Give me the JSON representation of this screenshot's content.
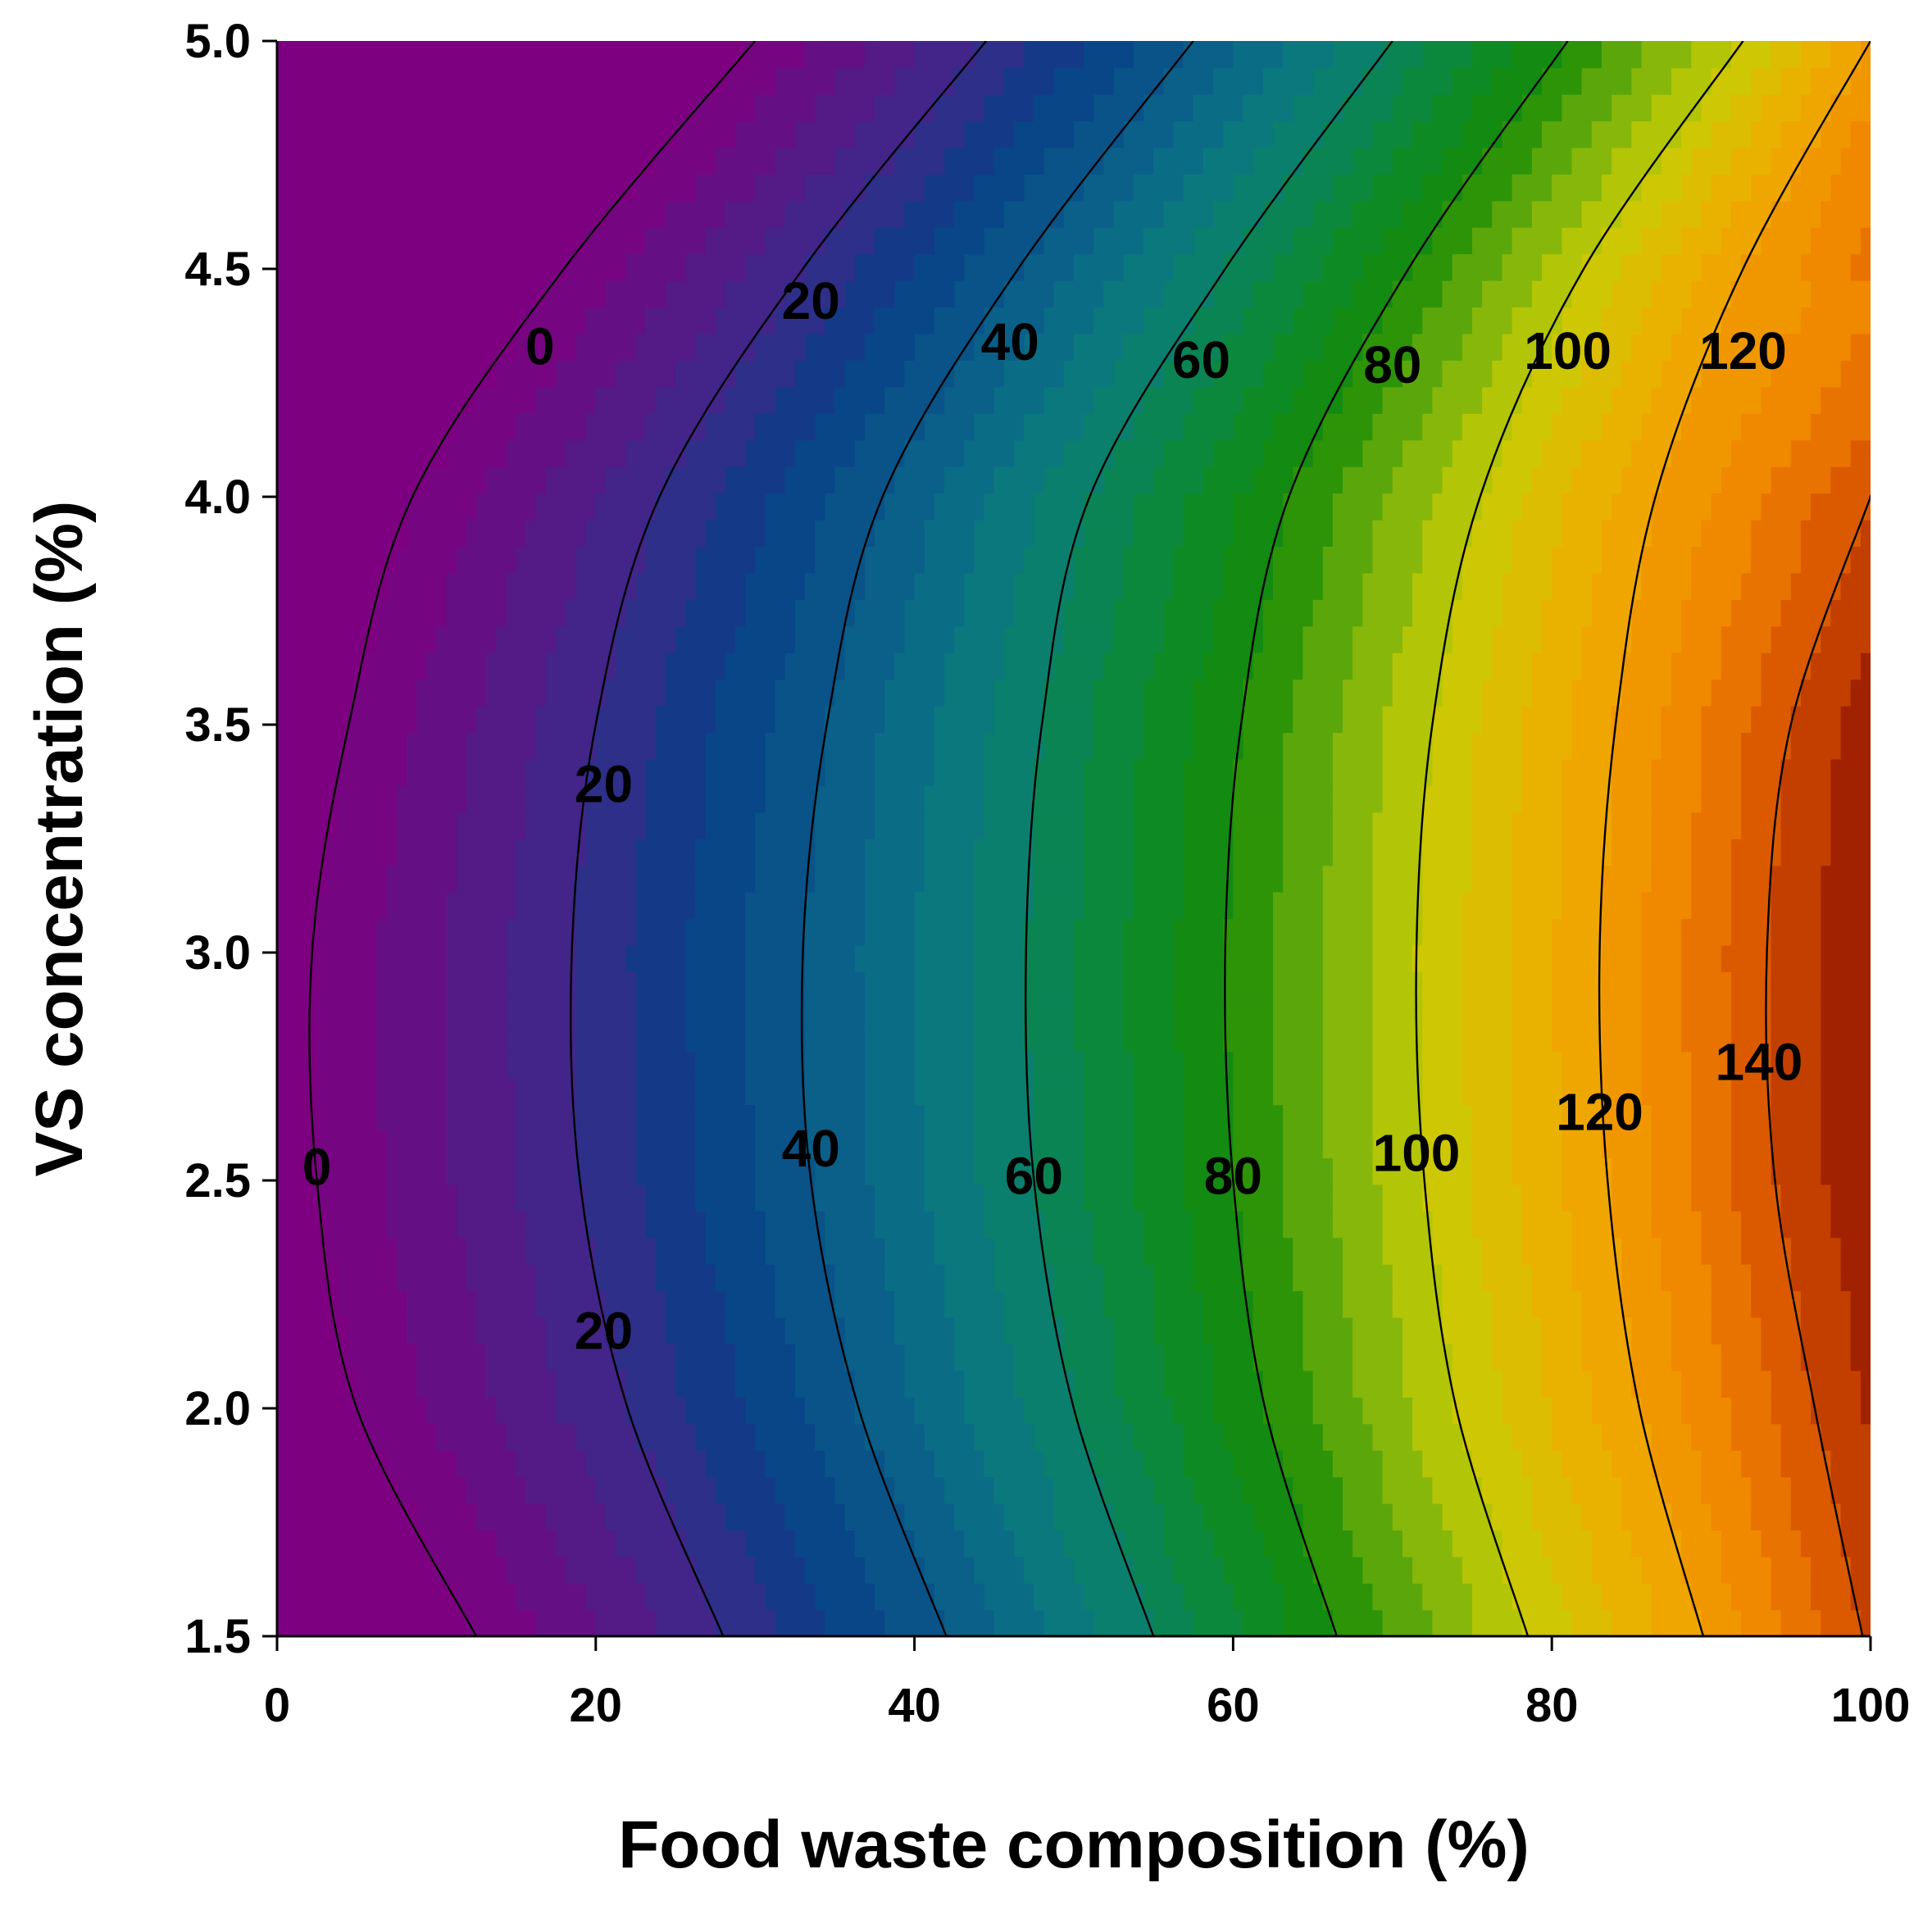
{
  "chart_data": {
    "type": "contour",
    "title": "",
    "xlabel": "Food waste composition (%)",
    "ylabel": "VS concentration (%)",
    "xlim": [
      0,
      100
    ],
    "ylim": [
      1.5,
      5.0
    ],
    "x_ticks": [
      0,
      20,
      40,
      60,
      80,
      100
    ],
    "x_tick_labels": [
      "0",
      "20",
      "40",
      "60",
      "80",
      "100"
    ],
    "y_ticks": [
      1.5,
      2.0,
      2.5,
      3.0,
      3.5,
      4.0,
      4.5,
      5.0
    ],
    "y_tick_labels": [
      "1.5",
      "2.0",
      "2.5",
      "3.0",
      "3.5",
      "4.0",
      "4.5",
      "5.0"
    ],
    "contour_levels": [
      0,
      20,
      40,
      60,
      80,
      100,
      120,
      140
    ],
    "contour_crossings_at_y": {
      "y": [
        1.5,
        2.0,
        2.5,
        3.0,
        3.5,
        4.0,
        4.5,
        5.0
      ],
      "series": [
        {
          "level": 0,
          "x": [
            12.5,
            5.0,
            2.5,
            2.2,
            4.5,
            8.5,
            18.0,
            30.0
          ]
        },
        {
          "level": 20,
          "x": [
            28.0,
            22.0,
            19.0,
            18.5,
            20.0,
            24.0,
            33.0,
            44.5
          ]
        },
        {
          "level": 40,
          "x": [
            42.0,
            36.5,
            33.5,
            33.0,
            34.5,
            38.0,
            46.5,
            57.5
          ]
        },
        {
          "level": 60,
          "x": [
            55.0,
            50.0,
            47.5,
            47.0,
            48.0,
            51.0,
            59.5,
            70.0
          ]
        },
        {
          "level": 80,
          "x": [
            66.5,
            62.0,
            60.0,
            59.5,
            60.5,
            63.5,
            71.0,
            81.0
          ]
        },
        {
          "level": 100,
          "x": [
            78.5,
            74.0,
            72.0,
            71.5,
            72.5,
            75.5,
            82.0,
            92.0
          ]
        },
        {
          "level": 120,
          "x": [
            89.5,
            85.5,
            83.5,
            83.0,
            84.0,
            86.5,
            92.0,
            100.0
          ]
        },
        {
          "level": 140,
          "x": [
            99.5,
            96.5,
            94.0,
            93.5,
            95.0,
            100.0,
            null,
            null
          ]
        }
      ]
    },
    "contour_labels": [
      {
        "text": "0",
        "x": 16.5,
        "y": 4.33
      },
      {
        "text": "20",
        "x": 33.5,
        "y": 4.43
      },
      {
        "text": "40",
        "x": 46.0,
        "y": 4.34
      },
      {
        "text": "60",
        "x": 58.0,
        "y": 4.3
      },
      {
        "text": "80",
        "x": 70.0,
        "y": 4.29
      },
      {
        "text": "100",
        "x": 81.0,
        "y": 4.32
      },
      {
        "text": "120",
        "x": 92.0,
        "y": 4.32
      },
      {
        "text": "20",
        "x": 20.5,
        "y": 3.37
      },
      {
        "text": "0",
        "x": 2.5,
        "y": 2.53
      },
      {
        "text": "40",
        "x": 33.5,
        "y": 2.57
      },
      {
        "text": "60",
        "x": 47.5,
        "y": 2.51
      },
      {
        "text": "80",
        "x": 60.0,
        "y": 2.51
      },
      {
        "text": "100",
        "x": 71.5,
        "y": 2.56
      },
      {
        "text": "120",
        "x": 83.0,
        "y": 2.65
      },
      {
        "text": "140",
        "x": 93.0,
        "y": 2.76
      },
      {
        "text": "20",
        "x": 20.5,
        "y": 2.17
      }
    ],
    "colormap": [
      {
        "value": 0,
        "color": "#7d0080"
      },
      {
        "value": 20,
        "color": "#3b2a8a"
      },
      {
        "value": 30,
        "color": "#073f86"
      },
      {
        "value": 45,
        "color": "#0b6789"
      },
      {
        "value": 55,
        "color": "#0b7d7a"
      },
      {
        "value": 70,
        "color": "#0b8a2e"
      },
      {
        "value": 80,
        "color": "#168a07"
      },
      {
        "value": 90,
        "color": "#72b00c"
      },
      {
        "value": 100,
        "color": "#c7cc04"
      },
      {
        "value": 115,
        "color": "#f0ad00"
      },
      {
        "value": 130,
        "color": "#f08000"
      },
      {
        "value": 140,
        "color": "#d44d00"
      },
      {
        "value": 150,
        "color": "#8f1400"
      }
    ],
    "contour_line_color": "#000000"
  }
}
